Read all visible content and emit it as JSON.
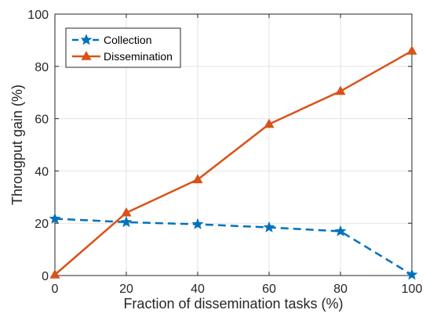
{
  "chart_data": {
    "type": "line",
    "xlabel": "Fraction of dissemination tasks (%)",
    "ylabel": "Througput gain (%)",
    "x": [
      0,
      20,
      40,
      60,
      80,
      100
    ],
    "xlim": [
      0,
      100
    ],
    "ylim": [
      0,
      100
    ],
    "xticks": [
      "0",
      "20",
      "40",
      "60",
      "80",
      "100"
    ],
    "yticks": [
      "0",
      "20",
      "40",
      "60",
      "80",
      "100"
    ],
    "grid": true,
    "legend_position": "top-left",
    "series": [
      {
        "name": "Collection",
        "values": [
          21.7,
          20.4,
          19.6,
          18.4,
          16.9,
          0.3
        ],
        "color": "#0072BD",
        "line_style": "dashed",
        "marker": "star"
      },
      {
        "name": "Dissemination",
        "values": [
          0.3,
          24.0,
          36.7,
          57.9,
          70.5,
          85.9
        ],
        "color": "#D95319",
        "line_style": "solid",
        "marker": "triangle"
      }
    ]
  }
}
